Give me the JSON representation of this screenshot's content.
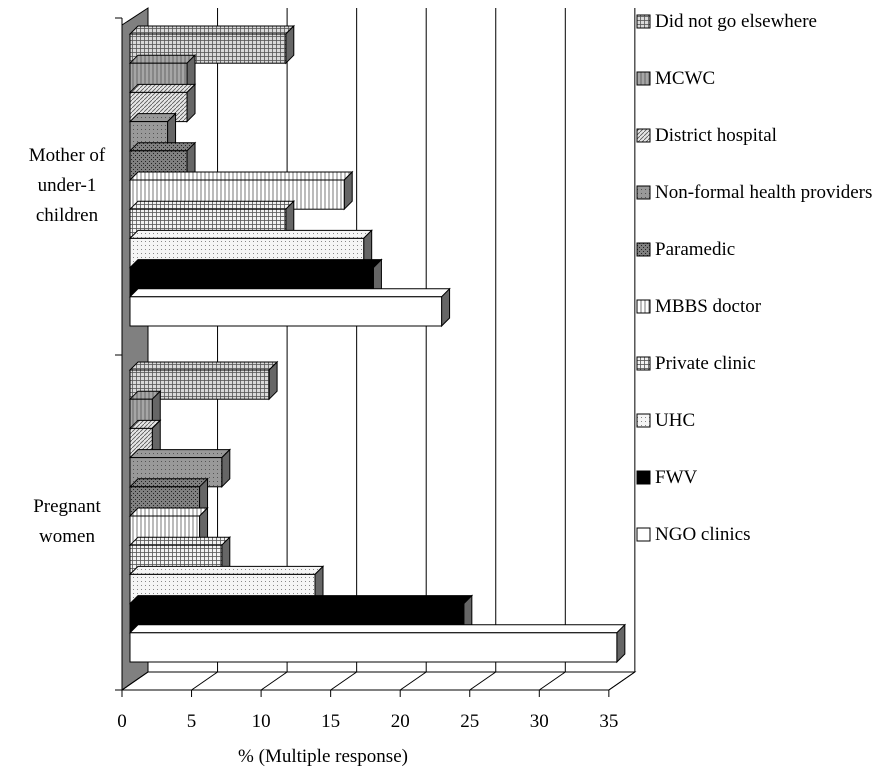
{
  "chart_data": {
    "type": "bar3d_horizontal",
    "x_label": "% (Multiple response)",
    "categories": [
      "Mother of under-1 children",
      "Pregnant women"
    ],
    "xlim": [
      0,
      35
    ],
    "xticks": [
      0,
      5,
      10,
      15,
      20,
      25,
      30,
      35
    ],
    "grid": true,
    "legend": "right",
    "series": [
      {
        "name": "Did not go elsewhere",
        "color": "#d9d9d9",
        "values": [
          11.2,
          10
        ]
      },
      {
        "name": "MCWC",
        "color": "#a6a6a6",
        "values": [
          4.1,
          1.6
        ]
      },
      {
        "name": "District hospital",
        "color": "#e6e6e6",
        "values": [
          4.1,
          1.6
        ]
      },
      {
        "name": "Non-formal health providers",
        "color": "#999999",
        "values": [
          2.7,
          6.6
        ]
      },
      {
        "name": "Paramedic",
        "color": "#808080",
        "values": [
          4.1,
          5
        ]
      },
      {
        "name": "MBBS doctor",
        "color": "#ffffff",
        "values": [
          15.4,
          5
        ]
      },
      {
        "name": "Private clinic",
        "color": "#f2f2f2",
        "values": [
          11.2,
          6.6
        ]
      },
      {
        "name": "UHC",
        "color": "#f5f5f5",
        "values": [
          16.8,
          13.3
        ]
      },
      {
        "name": "FWV",
        "color": "#000000",
        "values": [
          17.5,
          24
        ]
      },
      {
        "name": "NGO clinics",
        "color": "#ffffff",
        "values": [
          22.4,
          35
        ]
      }
    ]
  }
}
